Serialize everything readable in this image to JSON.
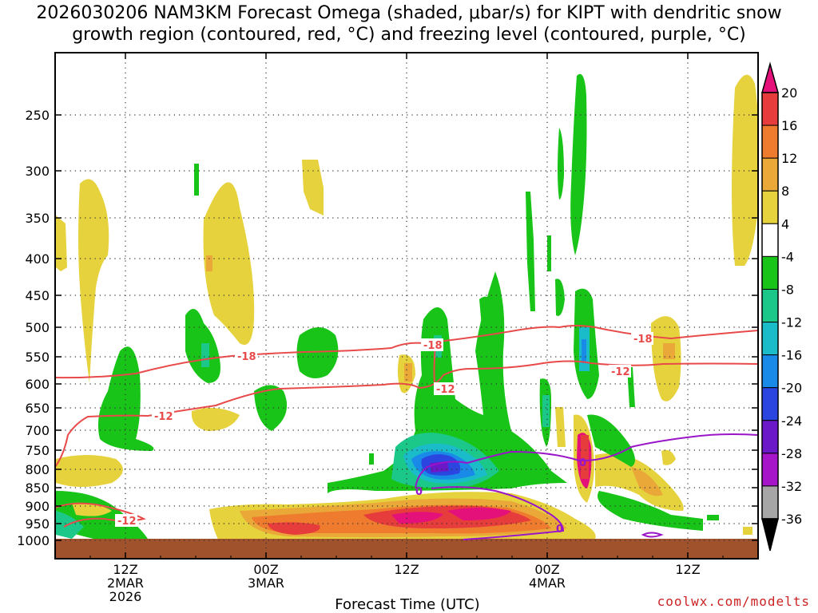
{
  "chart_data": {
    "type": "heatmap",
    "title_line1": "2026030206 NAM3KM Forecast Omega (shaded, μbar/s) for KIPT with dendritic snow",
    "title_line2": "growth region (contoured, red, °C) and freezing level (contoured, purple, °C)",
    "xlabel": "Forecast Time (UTC)",
    "credit": "coolwx.com/modelts",
    "y_ticks": [
      "250",
      "300",
      "350",
      "400",
      "450",
      "500",
      "550",
      "600",
      "650",
      "700",
      "750",
      "800",
      "850",
      "900",
      "950",
      "1000"
    ],
    "x_ticks": [
      {
        "line1": "12Z",
        "line2": "2MAR",
        "line3": "2026"
      },
      {
        "line1": "00Z",
        "line2": "3MAR",
        "line3": ""
      },
      {
        "line1": "12Z",
        "line2": "",
        "line3": ""
      },
      {
        "line1": "00Z",
        "line2": "4MAR",
        "line3": ""
      },
      {
        "line1": "12Z",
        "line2": "",
        "line3": ""
      }
    ],
    "x_tick_hours": [
      6,
      18,
      30,
      42,
      54
    ],
    "x_range_hours": [
      0,
      60
    ],
    "y_range_hpa": [
      1000,
      200
    ],
    "colorbar_labels": [
      "20",
      "16",
      "12",
      "8",
      "4",
      "-4",
      "-8",
      "-12",
      "-16",
      "-20",
      "-24",
      "-28",
      "-32",
      "-36"
    ],
    "colorbar_colors": [
      "#e4117a",
      "#e63c3c",
      "#ef7b2e",
      "#e9a838",
      "#e6d23c",
      "#ffffff",
      "#18c418",
      "#1bc88a",
      "#19bcc8",
      "#1a8ae8",
      "#2a45e0",
      "#6a18c8",
      "#a616c8",
      "#a6a6a6",
      "#000000"
    ],
    "contour_labels": [
      "-18",
      "-18",
      "-18",
      "-12",
      "-12",
      "-12",
      "-12",
      "0",
      "0",
      "0"
    ],
    "ground_color": "#9f522c"
  }
}
